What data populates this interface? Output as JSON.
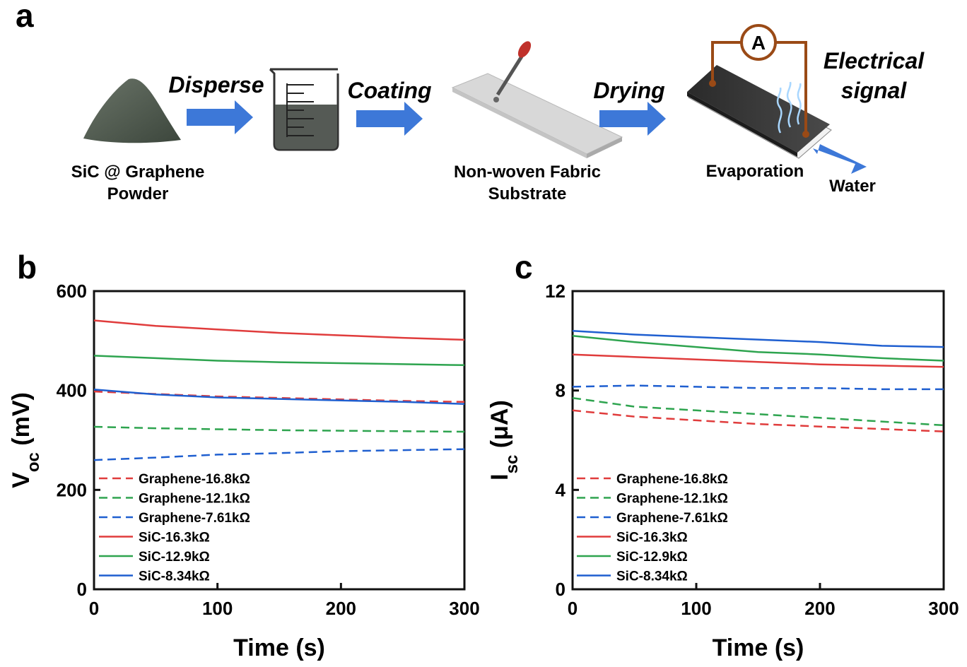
{
  "panels": {
    "a": {
      "label": "a",
      "steps": [
        "Disperse",
        "Coating",
        "Drying"
      ],
      "signal": [
        "Electrical",
        "signal"
      ],
      "ammeter": "A",
      "captions": {
        "powder": [
          "SiC @ Graphene",
          "Powder"
        ],
        "substrate": [
          "Non-woven Fabric",
          "Substrate"
        ],
        "evaporation": "Evaporation",
        "water": "Water"
      }
    },
    "b": {
      "label": "b"
    },
    "c": {
      "label": "c"
    }
  },
  "colors": {
    "red": "#e03c3c",
    "green": "#2ea44f",
    "blue": "#1f5fd0",
    "arrow": "#3d78d8",
    "circuit": "#9a4a16"
  },
  "chart_data": [
    {
      "id": "b",
      "type": "line",
      "xlabel": "Time (s)",
      "ylabel_main": "V",
      "ylabel_sub": "oc",
      "ylabel_unit": " (mV)",
      "xlim": [
        0,
        300
      ],
      "ylim": [
        0,
        600
      ],
      "xticks": [
        "0",
        "100",
        "200",
        "300"
      ],
      "yticks": [
        "0",
        "200",
        "400",
        "600"
      ],
      "x": [
        0,
        50,
        100,
        150,
        200,
        250,
        300
      ],
      "series": [
        {
          "name": "Graphene-16.8kΩ",
          "color": "red",
          "dash": true,
          "values": [
            398,
            393,
            388,
            385,
            382,
            379,
            377
          ]
        },
        {
          "name": "Graphene-12.1kΩ",
          "color": "green",
          "dash": true,
          "values": [
            327,
            324,
            322,
            320,
            319,
            318,
            317
          ]
        },
        {
          "name": "Graphene-7.61kΩ",
          "color": "blue",
          "dash": true,
          "values": [
            260,
            265,
            271,
            274,
            278,
            280,
            282
          ]
        },
        {
          "name": "SiC-16.3kΩ",
          "color": "red",
          "dash": false,
          "values": [
            541,
            530,
            523,
            516,
            511,
            506,
            502
          ]
        },
        {
          "name": "SiC-12.9kΩ",
          "color": "green",
          "dash": false,
          "values": [
            470,
            465,
            460,
            457,
            455,
            453,
            451
          ]
        },
        {
          "name": "SiC-8.34kΩ",
          "color": "blue",
          "dash": false,
          "values": [
            402,
            392,
            386,
            383,
            380,
            377,
            373
          ]
        }
      ]
    },
    {
      "id": "c",
      "type": "line",
      "xlabel": "Time (s)",
      "ylabel_main": "I",
      "ylabel_sub": "sc",
      "ylabel_unit": " (μA)",
      "xlim": [
        0,
        300
      ],
      "ylim": [
        0,
        12
      ],
      "xticks": [
        "0",
        "100",
        "200",
        "300"
      ],
      "yticks": [
        "0",
        "4",
        "8",
        "12"
      ],
      "x": [
        0,
        50,
        100,
        150,
        200,
        250,
        300
      ],
      "series": [
        {
          "name": "Graphene-16.8kΩ",
          "color": "red",
          "dash": true,
          "values": [
            7.2,
            6.95,
            6.8,
            6.65,
            6.55,
            6.45,
            6.35
          ]
        },
        {
          "name": "Graphene-12.1kΩ",
          "color": "green",
          "dash": true,
          "values": [
            7.7,
            7.35,
            7.2,
            7.05,
            6.9,
            6.75,
            6.6
          ]
        },
        {
          "name": "Graphene-7.61kΩ",
          "color": "blue",
          "dash": true,
          "values": [
            8.15,
            8.2,
            8.15,
            8.1,
            8.1,
            8.05,
            8.05
          ]
        },
        {
          "name": "SiC-16.3kΩ",
          "color": "red",
          "dash": false,
          "values": [
            9.45,
            9.35,
            9.25,
            9.15,
            9.05,
            9.0,
            8.95
          ]
        },
        {
          "name": "SiC-12.9kΩ",
          "color": "green",
          "dash": false,
          "values": [
            10.2,
            9.95,
            9.75,
            9.55,
            9.45,
            9.3,
            9.2
          ]
        },
        {
          "name": "SiC-8.34kΩ",
          "color": "blue",
          "dash": false,
          "values": [
            10.4,
            10.25,
            10.15,
            10.05,
            9.95,
            9.8,
            9.75
          ]
        }
      ]
    }
  ]
}
